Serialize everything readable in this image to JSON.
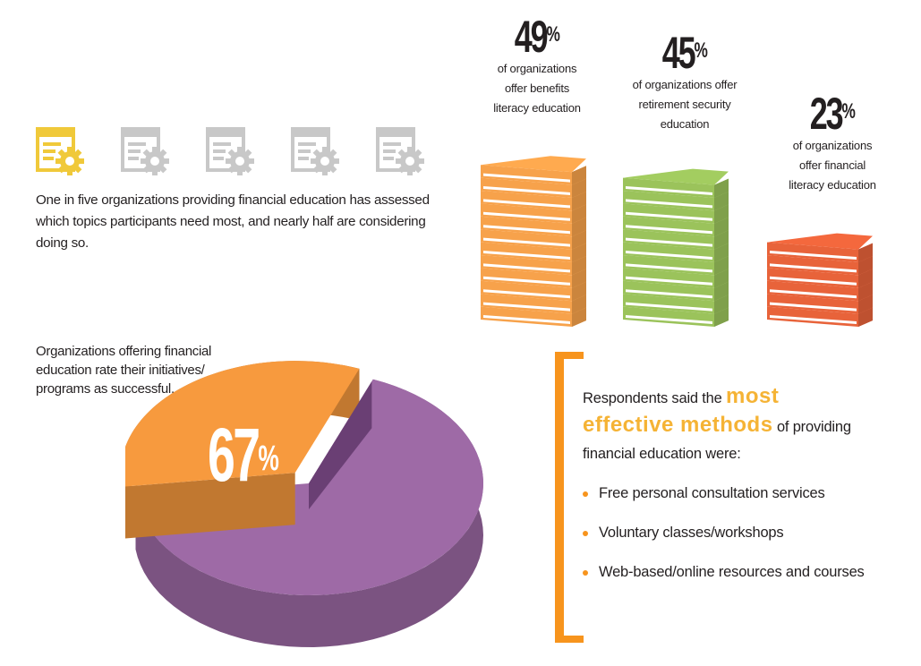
{
  "intro": {
    "text": "One in five organizations providing financial education has assessed which topics participants need most, and nearly half are considering doing so.",
    "icons": [
      {
        "icon": "document-gear-icon",
        "color": "#f0c93a"
      },
      {
        "icon": "document-gear-icon",
        "color": "#c8c8c8"
      },
      {
        "icon": "document-gear-icon",
        "color": "#c8c8c8"
      },
      {
        "icon": "document-gear-icon",
        "color": "#c8c8c8"
      },
      {
        "icon": "document-gear-icon",
        "color": "#c8c8c8"
      }
    ]
  },
  "pie_label": "Organizations offering financial education rate their initiatives/ programs as successful.",
  "methods": {
    "lead_before": "Respondents said the ",
    "highlight_1": "most",
    "highlight_2": "effective methods",
    "lead_after": " of providing financial education were:",
    "items": [
      "Free personal consultation services",
      "Voluntary classes/workshops",
      "Web-based/online resources and courses"
    ],
    "accent_color": "#f7941d",
    "highlight_color": "#f5b335"
  },
  "chart_data": [
    {
      "type": "bar",
      "style": "stacked-books",
      "categories": [
        "of organizations offer benefits literacy education",
        "of organizations offer retirement security education",
        "of organizations offer financial literacy education"
      ],
      "values": [
        49,
        45,
        23
      ],
      "value_labels": [
        "49%",
        "45%",
        "23%"
      ],
      "colors": [
        "#f7a24b",
        "#9bc35b",
        "#e8633a"
      ],
      "unit": "%"
    },
    {
      "type": "pie",
      "style": "3d",
      "slices": [
        {
          "value": 67,
          "color": "#9e6aa6"
        },
        {
          "value": 33,
          "color": "#f79a3e"
        }
      ],
      "value_label": "67%"
    }
  ]
}
